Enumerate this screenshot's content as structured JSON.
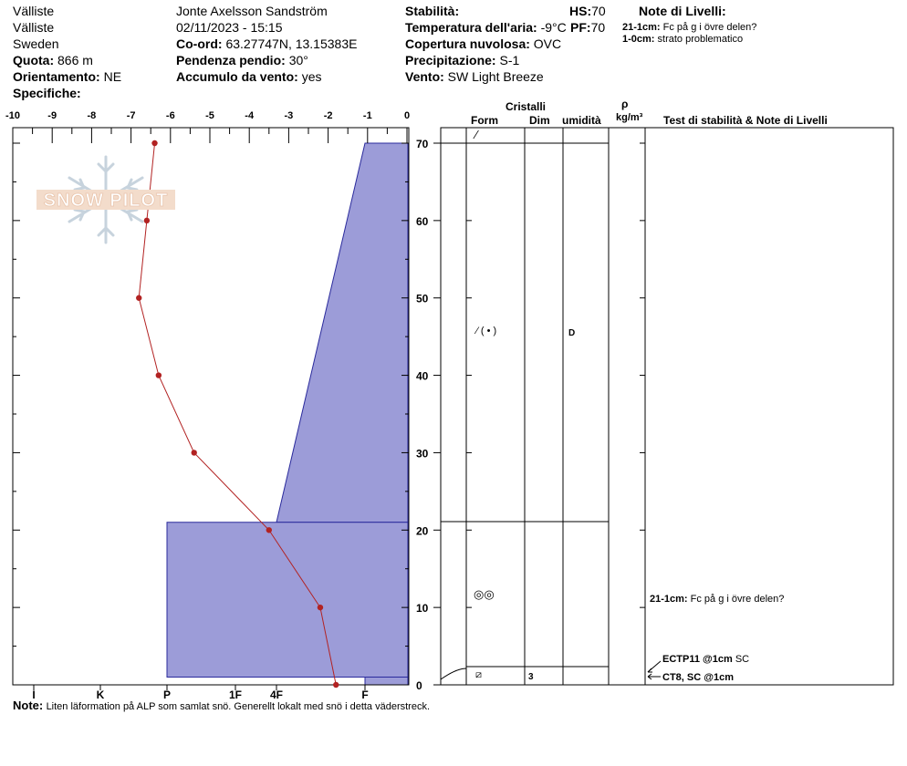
{
  "header": {
    "location1": "Välliste",
    "location2": "Välliste",
    "country": "Sweden",
    "observer_date": "Jonte Axelsson Sandström",
    "datetime": "02/11/2023 - 15:15",
    "elevation_label": "Quota:",
    "elevation_value": "866 m",
    "aspect_label": "Orientamento:",
    "aspect_value": "NE",
    "specifics_label": "Specifiche:",
    "coord_label": "Co-ord:",
    "coord_value": "63.27747N, 13.15383E",
    "slope_label": "Pendenza pendio:",
    "slope_value": "30°",
    "wind_loading_label": "Accumulo da vento:",
    "wind_loading_value": "yes",
    "stability_label": "Stabilità:",
    "stability_value": "",
    "air_temp_label": "Temperatura dell'aria:",
    "air_temp_value": "-9°C",
    "cloud_label": "Copertura nuvolosa:",
    "cloud_value": "OVC",
    "precip_label": "Precipitazione:",
    "precip_value": "S-1",
    "wind_label": "Vento:",
    "wind_value": "SW  Light Breeze",
    "hs_label": "HS:",
    "hs_value": "70",
    "pf_label": "PF:",
    "pf_value": "70",
    "layer_notes_title": "Note di Livelli:",
    "layer_notes": [
      {
        "range": "21-1cm:",
        "text": "Fc på g i övre delen?"
      },
      {
        "range": "1-0cm:",
        "text": "strato problematico"
      }
    ]
  },
  "table_headers": {
    "cristalli": "Cristalli",
    "form": "Form",
    "dim": "Dim",
    "umidita": "umidità",
    "rho": "ρ",
    "rho_unit": "kg/m³",
    "tests": "Test di stabilità & Note di Livelli"
  },
  "layer_rows": [
    {
      "form": "⁄ ( • )",
      "dim": "",
      "wetness": "D"
    },
    {
      "form": "◎◎",
      "dim": "",
      "wetness": ""
    },
    {
      "form": "⧄",
      "dim": "3",
      "wetness": ""
    }
  ],
  "test_notes": {
    "layer_note_range": "21-1cm:",
    "layer_note_text": "Fc på g i övre delen?",
    "test1_label": "ECTP11 @1cm",
    "test1_code": "SC",
    "test2_label": "CT8, SC @1cm"
  },
  "watermark": "SNOW PILOT",
  "footer": {
    "note_label": "Note:",
    "note_text": "Liten läformation på ALP som samlat snö. Generellt lokalt med snö i detta väderstreck."
  },
  "chart_data": {
    "type": "line",
    "temperature_axis": {
      "label": "",
      "range": [
        -10,
        0
      ],
      "ticks": [
        -10,
        -9,
        -8,
        -7,
        -6,
        -5,
        -4,
        -3,
        -2,
        -1,
        0
      ]
    },
    "height_axis": {
      "label": "",
      "range": [
        0,
        70
      ],
      "ticks": [
        0,
        10,
        20,
        30,
        40,
        50,
        60,
        70
      ]
    },
    "hardness_axis": {
      "ticks": [
        "I",
        "K",
        "P",
        "1F",
        "4F",
        "F"
      ]
    },
    "temperature_profile": [
      {
        "height": 70,
        "temp": -6.4
      },
      {
        "height": 60,
        "temp": -6.6
      },
      {
        "height": 50,
        "temp": -6.8
      },
      {
        "height": 40,
        "temp": -6.3
      },
      {
        "height": 30,
        "temp": -5.4
      },
      {
        "height": 20,
        "temp": -3.5
      },
      {
        "height": 10,
        "temp": -2.2
      },
      {
        "height": 0,
        "temp": -1.8
      }
    ],
    "hardness_profile": [
      {
        "top": 70,
        "bottom": 21,
        "hardness_top": "F",
        "hardness_bottom": "4F"
      },
      {
        "top": 21,
        "bottom": 1,
        "hardness": "P"
      },
      {
        "top": 1,
        "bottom": 0,
        "hardness": "F"
      }
    ],
    "layer_boundaries": [
      70,
      21,
      1,
      0
    ],
    "colors": {
      "hardness_fill": "#9c9cd8",
      "temperature_line": "#b22222",
      "temperature_point": "#b22222"
    }
  }
}
